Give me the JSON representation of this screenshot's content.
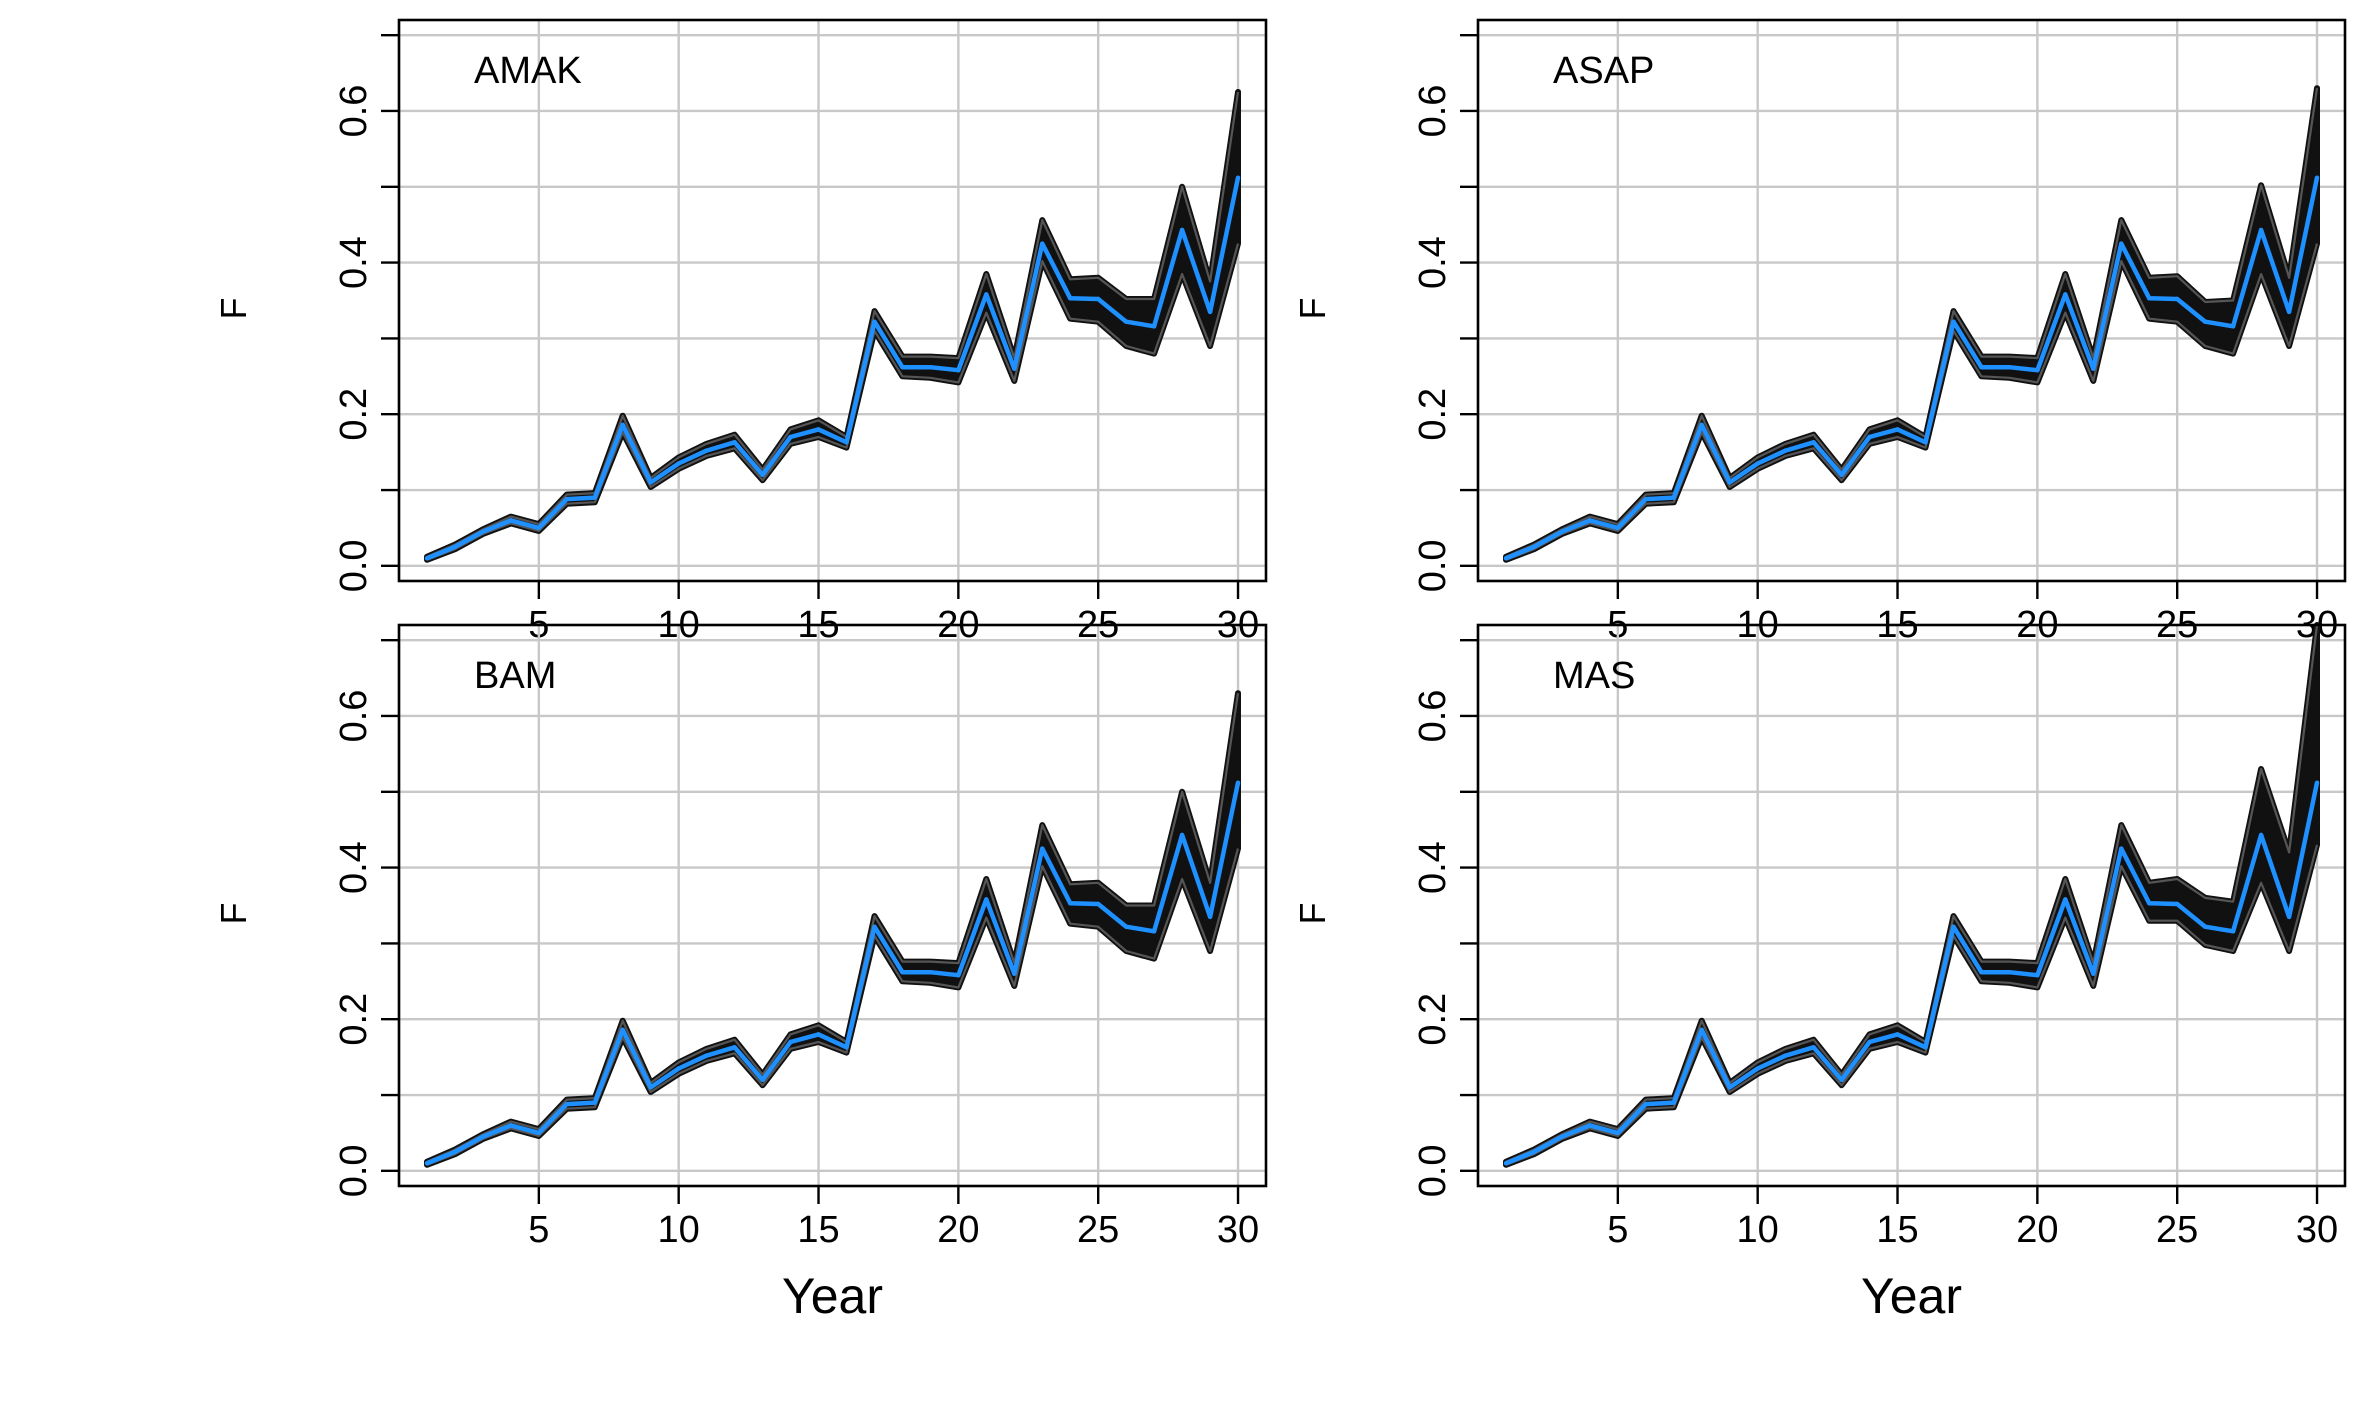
{
  "figure": {
    "xlabel": "Year",
    "ylabel": "F"
  },
  "colors": {
    "envelope": "#111111",
    "estimate": "#1E90FF",
    "grid": "#C8C8C8",
    "frame": "#000000"
  },
  "chart_data": [
    {
      "type": "line",
      "title": "AMAK",
      "xlabel": "Year",
      "ylabel": "F",
      "xlim": [
        0,
        31
      ],
      "ylim": [
        -0.02,
        0.72
      ],
      "xticks": [
        5,
        10,
        15,
        20,
        25,
        30
      ],
      "yticks": [
        0.0,
        0.2,
        0.4,
        0.6
      ],
      "grid": true,
      "x": [
        1,
        2,
        3,
        4,
        5,
        6,
        7,
        8,
        9,
        10,
        11,
        12,
        13,
        14,
        15,
        16,
        17,
        18,
        19,
        20,
        21,
        22,
        23,
        24,
        25,
        26,
        27,
        28,
        29,
        30
      ],
      "series": [
        {
          "role": "estimate",
          "values": [
            0.01,
            0.025,
            0.045,
            0.06,
            0.05,
            0.088,
            0.09,
            0.186,
            0.11,
            0.135,
            0.152,
            0.163,
            0.12,
            0.17,
            0.18,
            0.163,
            0.322,
            0.262,
            0.262,
            0.258,
            0.358,
            0.26,
            0.425,
            0.353,
            0.352,
            0.322,
            0.316,
            0.443,
            0.335,
            0.512
          ]
        },
        {
          "role": "envelope-upper",
          "values": [
            0.012,
            0.028,
            0.048,
            0.065,
            0.055,
            0.094,
            0.096,
            0.198,
            0.116,
            0.143,
            0.161,
            0.173,
            0.127,
            0.18,
            0.192,
            0.17,
            0.336,
            0.276,
            0.276,
            0.274,
            0.385,
            0.274,
            0.456,
            0.378,
            0.38,
            0.352,
            0.352,
            0.5,
            0.375,
            0.625
          ]
        },
        {
          "role": "envelope-lower",
          "values": [
            0.008,
            0.022,
            0.042,
            0.056,
            0.046,
            0.082,
            0.084,
            0.176,
            0.104,
            0.128,
            0.145,
            0.155,
            0.113,
            0.161,
            0.17,
            0.156,
            0.31,
            0.25,
            0.248,
            0.242,
            0.334,
            0.244,
            0.402,
            0.326,
            0.322,
            0.29,
            0.28,
            0.385,
            0.29,
            0.425
          ]
        }
      ]
    },
    {
      "type": "line",
      "title": "ASAP",
      "xlabel": "Year",
      "ylabel": "F",
      "xlim": [
        0,
        31
      ],
      "ylim": [
        -0.02,
        0.72
      ],
      "xticks": [
        5,
        10,
        15,
        20,
        25,
        30
      ],
      "yticks": [
        0.0,
        0.2,
        0.4,
        0.6
      ],
      "grid": true,
      "x": [
        1,
        2,
        3,
        4,
        5,
        6,
        7,
        8,
        9,
        10,
        11,
        12,
        13,
        14,
        15,
        16,
        17,
        18,
        19,
        20,
        21,
        22,
        23,
        24,
        25,
        26,
        27,
        28,
        29,
        30
      ],
      "series": [
        {
          "role": "estimate",
          "values": [
            0.01,
            0.025,
            0.045,
            0.06,
            0.05,
            0.088,
            0.09,
            0.186,
            0.11,
            0.135,
            0.152,
            0.163,
            0.12,
            0.17,
            0.18,
            0.163,
            0.322,
            0.262,
            0.262,
            0.258,
            0.358,
            0.26,
            0.425,
            0.353,
            0.352,
            0.322,
            0.316,
            0.443,
            0.335,
            0.512
          ]
        },
        {
          "role": "envelope-upper",
          "values": [
            0.012,
            0.028,
            0.048,
            0.065,
            0.055,
            0.094,
            0.096,
            0.198,
            0.116,
            0.143,
            0.161,
            0.173,
            0.127,
            0.18,
            0.192,
            0.17,
            0.336,
            0.276,
            0.276,
            0.274,
            0.385,
            0.274,
            0.456,
            0.38,
            0.382,
            0.348,
            0.35,
            0.502,
            0.38,
            0.63
          ]
        },
        {
          "role": "envelope-lower",
          "values": [
            0.008,
            0.022,
            0.042,
            0.056,
            0.046,
            0.082,
            0.084,
            0.176,
            0.104,
            0.128,
            0.145,
            0.155,
            0.113,
            0.161,
            0.17,
            0.156,
            0.31,
            0.25,
            0.248,
            0.242,
            0.334,
            0.244,
            0.402,
            0.326,
            0.322,
            0.29,
            0.28,
            0.385,
            0.29,
            0.425
          ]
        }
      ]
    },
    {
      "type": "line",
      "title": "BAM",
      "xlabel": "Year",
      "ylabel": "F",
      "xlim": [
        0,
        31
      ],
      "ylim": [
        -0.02,
        0.72
      ],
      "xticks": [
        5,
        10,
        15,
        20,
        25,
        30
      ],
      "yticks": [
        0.0,
        0.2,
        0.4,
        0.6
      ],
      "grid": true,
      "x": [
        1,
        2,
        3,
        4,
        5,
        6,
        7,
        8,
        9,
        10,
        11,
        12,
        13,
        14,
        15,
        16,
        17,
        18,
        19,
        20,
        21,
        22,
        23,
        24,
        25,
        26,
        27,
        28,
        29,
        30
      ],
      "series": [
        {
          "role": "estimate",
          "values": [
            0.01,
            0.025,
            0.045,
            0.06,
            0.05,
            0.088,
            0.09,
            0.186,
            0.11,
            0.135,
            0.152,
            0.163,
            0.12,
            0.17,
            0.18,
            0.163,
            0.322,
            0.262,
            0.262,
            0.258,
            0.358,
            0.26,
            0.425,
            0.353,
            0.352,
            0.322,
            0.316,
            0.443,
            0.335,
            0.512
          ]
        },
        {
          "role": "envelope-upper",
          "values": [
            0.012,
            0.028,
            0.048,
            0.065,
            0.055,
            0.094,
            0.096,
            0.198,
            0.116,
            0.143,
            0.161,
            0.173,
            0.127,
            0.18,
            0.192,
            0.17,
            0.336,
            0.276,
            0.276,
            0.274,
            0.385,
            0.274,
            0.456,
            0.378,
            0.38,
            0.35,
            0.35,
            0.5,
            0.38,
            0.63
          ]
        },
        {
          "role": "envelope-lower",
          "values": [
            0.008,
            0.022,
            0.042,
            0.056,
            0.046,
            0.082,
            0.084,
            0.176,
            0.104,
            0.128,
            0.145,
            0.155,
            0.113,
            0.161,
            0.17,
            0.156,
            0.31,
            0.25,
            0.248,
            0.242,
            0.334,
            0.244,
            0.402,
            0.326,
            0.322,
            0.29,
            0.28,
            0.385,
            0.29,
            0.425
          ]
        }
      ]
    },
    {
      "type": "line",
      "title": "MAS",
      "xlabel": "Year",
      "ylabel": "F",
      "xlim": [
        0,
        31
      ],
      "ylim": [
        -0.02,
        0.72
      ],
      "xticks": [
        5,
        10,
        15,
        20,
        25,
        30
      ],
      "yticks": [
        0.0,
        0.2,
        0.4,
        0.6
      ],
      "grid": true,
      "x": [
        1,
        2,
        3,
        4,
        5,
        6,
        7,
        8,
        9,
        10,
        11,
        12,
        13,
        14,
        15,
        16,
        17,
        18,
        19,
        20,
        21,
        22,
        23,
        24,
        25,
        26,
        27,
        28,
        29,
        30
      ],
      "series": [
        {
          "role": "estimate",
          "values": [
            0.01,
            0.025,
            0.045,
            0.06,
            0.05,
            0.088,
            0.09,
            0.186,
            0.11,
            0.135,
            0.152,
            0.163,
            0.12,
            0.17,
            0.18,
            0.163,
            0.322,
            0.262,
            0.262,
            0.258,
            0.358,
            0.26,
            0.425,
            0.353,
            0.352,
            0.322,
            0.316,
            0.443,
            0.335,
            0.512
          ]
        },
        {
          "role": "envelope-upper",
          "values": [
            0.012,
            0.028,
            0.048,
            0.065,
            0.055,
            0.094,
            0.096,
            0.198,
            0.116,
            0.143,
            0.161,
            0.173,
            0.127,
            0.18,
            0.192,
            0.17,
            0.336,
            0.276,
            0.276,
            0.274,
            0.385,
            0.274,
            0.456,
            0.38,
            0.385,
            0.36,
            0.355,
            0.53,
            0.42,
            0.72
          ]
        },
        {
          "role": "envelope-lower",
          "values": [
            0.008,
            0.022,
            0.042,
            0.056,
            0.046,
            0.082,
            0.084,
            0.176,
            0.104,
            0.128,
            0.145,
            0.155,
            0.113,
            0.161,
            0.17,
            0.156,
            0.31,
            0.25,
            0.248,
            0.242,
            0.334,
            0.244,
            0.402,
            0.33,
            0.33,
            0.298,
            0.29,
            0.38,
            0.29,
            0.43
          ]
        }
      ]
    }
  ]
}
